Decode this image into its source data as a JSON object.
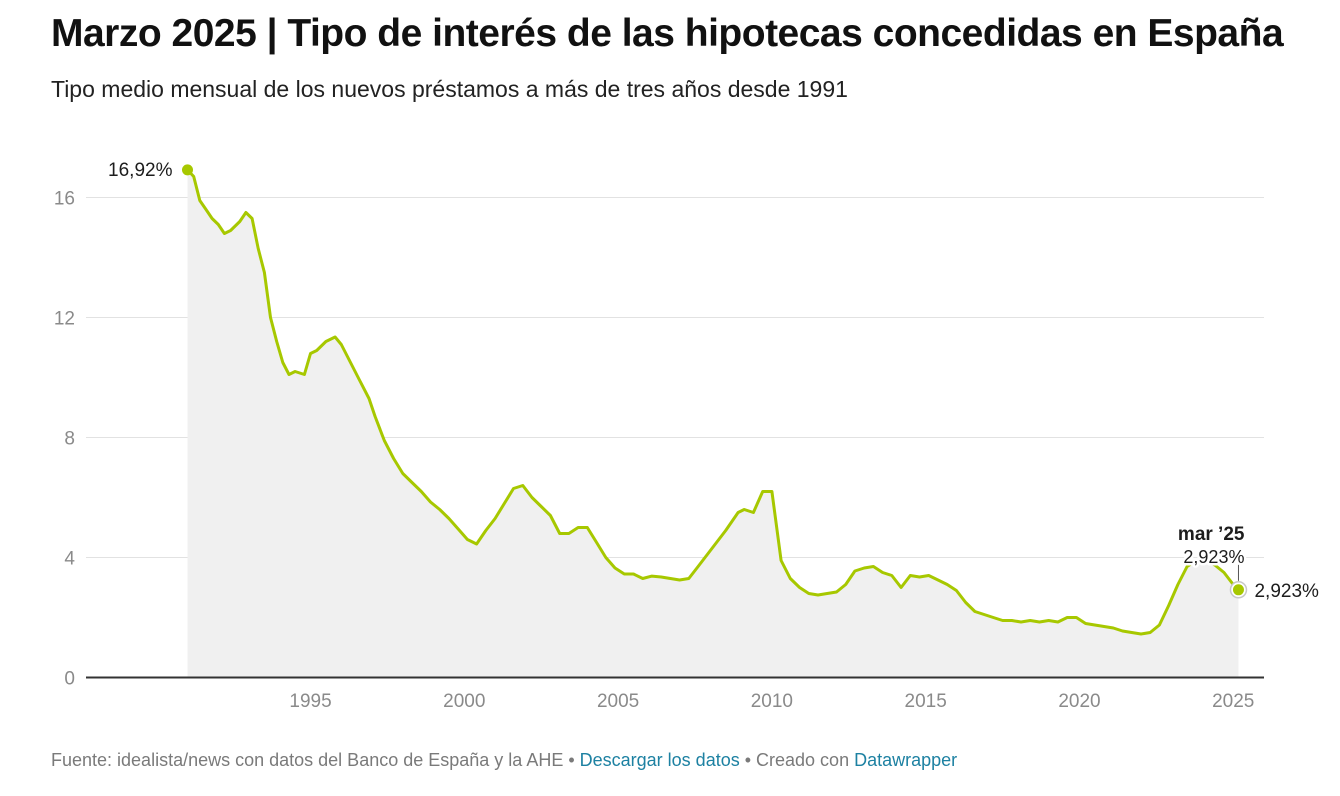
{
  "header": {
    "title": "Marzo 2025 | Tipo de interés de las hipotecas concedidas en España",
    "subtitle": "Tipo medio mensual de los nuevos préstamos a más de tres años desde 1991"
  },
  "footer": {
    "source": "Fuente: idealista/news con datos del Banco de España y la AHE",
    "sep1": " • ",
    "download": "Descargar los datos",
    "sep2": " • Creado con ",
    "tool": "Datawrapper"
  },
  "colors": {
    "line": "#a7c800",
    "area": "#f0f0f0",
    "grid": "#e2e2e2",
    "axis": "#333333",
    "link": "#1d81a2"
  },
  "chart_data": {
    "type": "area",
    "x_unit": "year",
    "y_unit": "%",
    "xlim": [
      1987.7,
      2026
    ],
    "ylim": [
      0,
      16
    ],
    "x_ticks": [
      1995,
      2000,
      2005,
      2010,
      2015,
      2020,
      2025
    ],
    "y_ticks": [
      0,
      4,
      8,
      12,
      16
    ],
    "grid": true,
    "series": [
      {
        "x": [
          1991.0,
          1991.2,
          1991.4,
          1991.6,
          1991.8,
          1992.0,
          1992.2,
          1992.4,
          1992.7,
          1992.9,
          1993.1,
          1993.3,
          1993.5,
          1993.7,
          1993.9,
          1994.1,
          1994.3,
          1994.5,
          1994.8,
          1995.0,
          1995.2,
          1995.5,
          1995.8,
          1996.0,
          1996.3,
          1996.6,
          1996.9,
          1997.1,
          1997.4,
          1997.7,
          1998.0,
          1998.3,
          1998.6,
          1998.9,
          1999.2,
          1999.5,
          1999.8,
          2000.1,
          2000.4,
          2000.7,
          2001.0,
          2001.3,
          2001.6,
          2001.9,
          2002.2,
          2002.5,
          2002.8,
          2003.1,
          2003.4,
          2003.7,
          2004.0,
          2004.3,
          2004.6,
          2004.9,
          2005.2,
          2005.5,
          2005.8,
          2006.1,
          2006.4,
          2006.7,
          2007.0,
          2007.3,
          2007.6,
          2007.9,
          2008.2,
          2008.5,
          2008.7,
          2008.9,
          2009.1,
          2009.4,
          2009.7,
          2010.0,
          2010.3,
          2010.6,
          2010.9,
          2011.2,
          2011.5,
          2011.8,
          2012.1,
          2012.4,
          2012.7,
          2013.0,
          2013.3,
          2013.6,
          2013.9,
          2014.2,
          2014.5,
          2014.8,
          2015.1,
          2015.4,
          2015.7,
          2016.0,
          2016.3,
          2016.6,
          2016.9,
          2017.2,
          2017.5,
          2017.8,
          2018.1,
          2018.4,
          2018.7,
          2019.0,
          2019.3,
          2019.6,
          2019.9,
          2020.2,
          2020.5,
          2020.8,
          2021.1,
          2021.4,
          2021.7,
          2022.0,
          2022.3,
          2022.6,
          2022.9,
          2023.2,
          2023.5,
          2023.8,
          2024.1,
          2024.4,
          2024.7,
          2025.0,
          2025.17
        ],
        "y": [
          16.92,
          16.7,
          15.9,
          15.6,
          15.3,
          15.1,
          14.8,
          14.9,
          15.2,
          15.5,
          15.3,
          14.3,
          13.5,
          12.0,
          11.2,
          10.5,
          10.1,
          10.2,
          10.1,
          10.8,
          10.9,
          11.2,
          11.35,
          11.1,
          10.5,
          9.9,
          9.3,
          8.7,
          7.9,
          7.3,
          6.8,
          6.5,
          6.2,
          5.85,
          5.6,
          5.3,
          4.95,
          4.6,
          4.45,
          4.9,
          5.3,
          5.8,
          6.3,
          6.4,
          6.0,
          5.7,
          5.4,
          4.8,
          4.8,
          5.0,
          5.0,
          4.5,
          4.0,
          3.65,
          3.45,
          3.45,
          3.3,
          3.38,
          3.35,
          3.3,
          3.25,
          3.3,
          3.7,
          4.1,
          4.5,
          4.9,
          5.2,
          5.5,
          5.6,
          5.5,
          6.2,
          6.2,
          3.9,
          3.3,
          3.0,
          2.8,
          2.75,
          2.8,
          2.85,
          3.1,
          3.55,
          3.65,
          3.7,
          3.5,
          3.4,
          3.0,
          3.4,
          3.35,
          3.4,
          3.25,
          3.1,
          2.9,
          2.5,
          2.2,
          2.1,
          2.0,
          1.9,
          1.9,
          1.85,
          1.9,
          1.85,
          1.9,
          1.85,
          2.0,
          2.0,
          1.8,
          1.75,
          1.7,
          1.65,
          1.55,
          1.5,
          1.45,
          1.5,
          1.75,
          2.4,
          3.1,
          3.7,
          3.9,
          3.9,
          3.75,
          3.5,
          3.1,
          2.923
        ]
      }
    ],
    "annotations": [
      {
        "label": "16,92%"
      },
      {
        "label": "mar ’25",
        "value": "2,923%"
      },
      {
        "label": "2,923%"
      }
    ]
  }
}
